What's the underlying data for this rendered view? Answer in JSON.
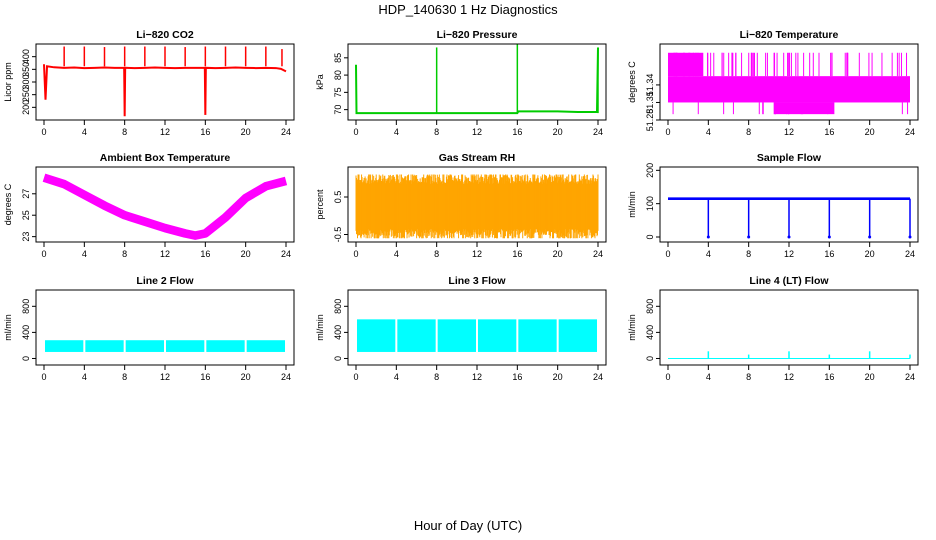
{
  "figure": {
    "title": "HDP_140630  1 Hz Diagnostics",
    "xlabel": "Hour of Day (UTC)"
  },
  "chart_data": [
    {
      "type": "line",
      "title": "Li−820 CO2",
      "ylabel": "Licor ppm",
      "color": "#ff0000",
      "xlim": [
        0,
        24
      ],
      "ylim": [
        150,
        450
      ],
      "xticks": [
        0,
        4,
        8,
        12,
        16,
        20,
        24
      ],
      "yticks": [
        200,
        250,
        300,
        350,
        400
      ],
      "x": [
        0,
        0.15,
        0.3,
        1,
        2,
        3,
        4,
        5,
        6,
        7,
        7.95,
        8,
        8.05,
        9,
        10,
        11,
        12,
        13,
        14,
        15,
        15.95,
        16,
        16.05,
        17,
        18,
        19,
        20,
        21,
        22,
        23,
        23.5,
        24
      ],
      "y": [
        370,
        230,
        362,
        358,
        356,
        357,
        355,
        356,
        357,
        356,
        356,
        165,
        356,
        355,
        356,
        357,
        356,
        355,
        356,
        356,
        356,
        170,
        356,
        355,
        356,
        357,
        356,
        355,
        356,
        355,
        352,
        342
      ],
      "spikes": [
        {
          "x": 2,
          "y": 440
        },
        {
          "x": 4,
          "y": 440
        },
        {
          "x": 6,
          "y": 438
        },
        {
          "x": 8,
          "y": 440
        },
        {
          "x": 10,
          "y": 440
        },
        {
          "x": 12,
          "y": 440
        },
        {
          "x": 14,
          "y": 438
        },
        {
          "x": 16,
          "y": 440
        },
        {
          "x": 18,
          "y": 440
        },
        {
          "x": 20,
          "y": 440
        },
        {
          "x": 22,
          "y": 440
        },
        {
          "x": 23.6,
          "y": 430
        }
      ]
    },
    {
      "type": "line",
      "title": "Li−820 Pressure",
      "ylabel": "kPa",
      "color": "#00cc00",
      "xlim": [
        0,
        24
      ],
      "ylim": [
        67,
        89
      ],
      "xticks": [
        0,
        4,
        8,
        12,
        16,
        20,
        24
      ],
      "yticks": [
        70,
        75,
        80,
        85
      ],
      "x": [
        0,
        0.05,
        0.3,
        2,
        4,
        6,
        8,
        10,
        12,
        14,
        15.9,
        16,
        16.1,
        18,
        20,
        22,
        23.9,
        24
      ],
      "y": [
        83,
        69,
        69,
        69,
        69,
        69,
        69,
        69,
        69,
        69,
        69,
        69,
        69.5,
        69.5,
        69.5,
        69.3,
        69.3,
        88
      ],
      "spikes": [
        {
          "x": 8,
          "y": 88
        },
        {
          "x": 16,
          "y": 89
        },
        {
          "x": 24,
          "y": 88
        }
      ]
    },
    {
      "type": "area",
      "title": "Li−820 Temperature",
      "ylabel": "degrees C",
      "color": "#ff00ff",
      "xlim": [
        0,
        24
      ],
      "ylim": [
        51.28,
        51.41
      ],
      "xticks": [
        0,
        4,
        8,
        12,
        16,
        20,
        24
      ],
      "yticks": [
        51.28,
        51.31,
        51.34
      ],
      "band": {
        "low": 51.31,
        "high": 51.355,
        "min": 51.29,
        "max": 51.395
      }
    },
    {
      "type": "area",
      "title": "Ambient Box Temperature",
      "ylabel": "degrees C",
      "color": "#ff00ff",
      "xlim": [
        0,
        24
      ],
      "ylim": [
        22.5,
        29.5
      ],
      "xticks": [
        0,
        4,
        8,
        12,
        16,
        20,
        24
      ],
      "yticks": [
        23,
        25,
        27
      ],
      "x": [
        0,
        2,
        4,
        6,
        8,
        10,
        12,
        14,
        15,
        16,
        18,
        20,
        22,
        24
      ],
      "y": [
        28.5,
        27.9,
        26.9,
        25.9,
        25.0,
        24.4,
        23.8,
        23.3,
        23.1,
        23.3,
        24.8,
        26.6,
        27.7,
        28.2
      ],
      "spread": 0.4
    },
    {
      "type": "area",
      "title": "Gas Stream RH",
      "ylabel": "percent",
      "color": "#ffa500",
      "xlim": [
        0,
        24
      ],
      "ylim": [
        -0.7,
        1.3
      ],
      "xticks": [
        0,
        4,
        8,
        12,
        16,
        20,
        24
      ],
      "yticks": [
        -0.5,
        0.5
      ],
      "band": {
        "low": -0.5,
        "high": 1.0,
        "min": -0.6,
        "max": 1.1,
        "center": 0.2
      }
    },
    {
      "type": "line",
      "title": "Sample Flow",
      "ylabel": "ml/min",
      "color": "#0000ff",
      "xlim": [
        0,
        24
      ],
      "ylim": [
        -15,
        210
      ],
      "xticks": [
        0,
        4,
        8,
        12,
        16,
        20,
        24
      ],
      "yticks": [
        0,
        100,
        200
      ],
      "base": 115,
      "spread": 8,
      "dips": [
        4,
        8,
        12,
        16,
        20,
        24
      ],
      "dipValue": 0
    },
    {
      "type": "area",
      "title": "Line 2 Flow",
      "ylabel": "ml/min",
      "color": "#00ffff",
      "xlim": [
        0,
        24
      ],
      "ylim": [
        -100,
        1050
      ],
      "xticks": [
        0,
        4,
        8,
        12,
        16,
        20,
        24
      ],
      "yticks": [
        0,
        400,
        800
      ],
      "band": {
        "low": 100,
        "high": 280
      },
      "gaps": [
        4,
        8,
        12,
        16,
        20
      ]
    },
    {
      "type": "area",
      "title": "Line 3 Flow",
      "ylabel": "ml/min",
      "color": "#00ffff",
      "xlim": [
        0,
        24
      ],
      "ylim": [
        -100,
        1050
      ],
      "xticks": [
        0,
        4,
        8,
        12,
        16,
        20,
        24
      ],
      "yticks": [
        0,
        400,
        800
      ],
      "band": {
        "low": 100,
        "high": 600
      },
      "gaps": [
        4,
        8,
        12,
        16,
        20
      ]
    },
    {
      "type": "line",
      "title": "Line 4 (LT) Flow",
      "ylabel": "ml/min",
      "color": "#00ffff",
      "xlim": [
        0,
        24
      ],
      "ylim": [
        -100,
        1050
      ],
      "xticks": [
        0,
        4,
        8,
        12,
        16,
        20,
        24
      ],
      "yticks": [
        0,
        400,
        800
      ],
      "base": 0,
      "spikes": [
        {
          "x": 4,
          "y": 110
        },
        {
          "x": 8,
          "y": 60
        },
        {
          "x": 12,
          "y": 110
        },
        {
          "x": 16,
          "y": 60
        },
        {
          "x": 20,
          "y": 110
        },
        {
          "x": 24,
          "y": 60
        }
      ]
    }
  ]
}
